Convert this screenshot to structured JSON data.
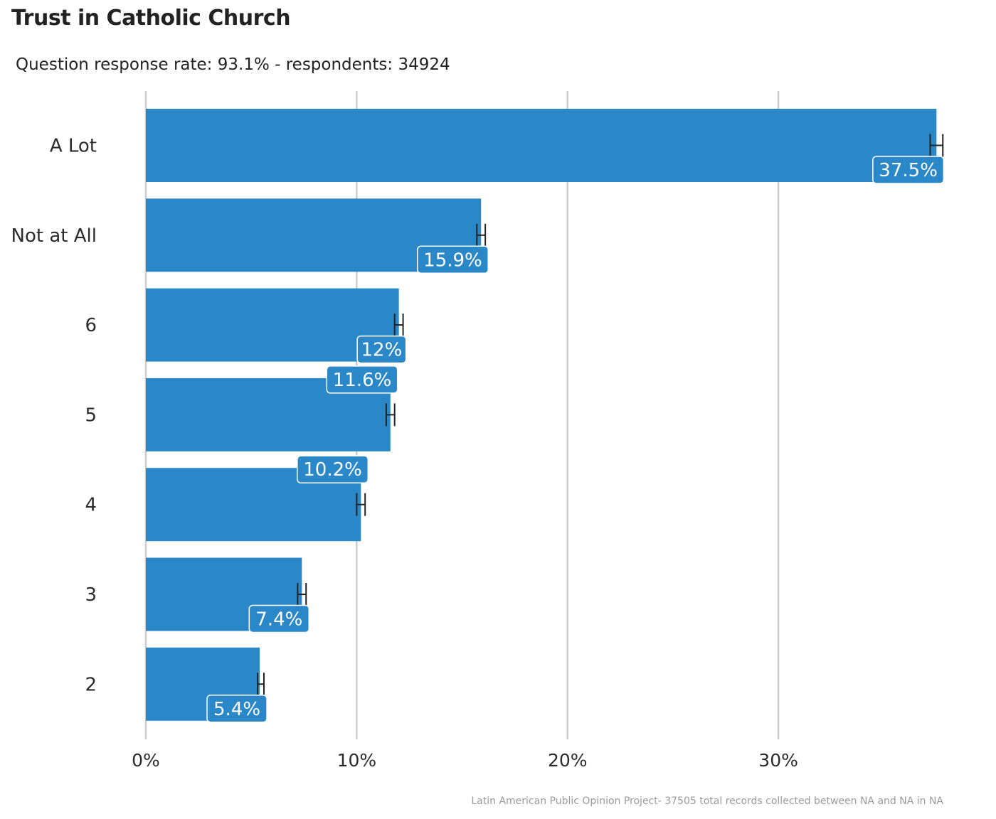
{
  "chart_data": {
    "type": "bar",
    "orientation": "horizontal",
    "title": "Trust in Catholic Church",
    "subtitle": "Question response rate: 93.1%  - respondents: 34924",
    "caption": "Latin American Public Opinion Project- 37505 total records collected between NA and NA in  NA",
    "categories": [
      "A Lot",
      "Not at All",
      "6",
      "5",
      "4",
      "3",
      "2"
    ],
    "values": [
      37.5,
      15.9,
      12.0,
      11.6,
      10.2,
      7.4,
      5.4
    ],
    "data_labels": [
      "37.5%",
      "15.9%",
      "12%",
      "11.6%",
      "10.2%",
      "7.4%",
      "5.4%"
    ],
    "error_bars": [
      {
        "low": 37.2,
        "high": 37.8
      },
      {
        "low": 15.7,
        "high": 16.1
      },
      {
        "low": 11.8,
        "high": 12.2
      },
      {
        "low": 11.4,
        "high": 11.8
      },
      {
        "low": 10.0,
        "high": 10.4
      },
      {
        "low": 7.2,
        "high": 7.6
      },
      {
        "low": 5.3,
        "high": 5.6
      }
    ],
    "xlim": [
      0,
      38.5
    ],
    "x_ticks": [
      0,
      10,
      20,
      30
    ],
    "x_tick_labels": [
      "0%",
      "10%",
      "20%",
      "30%"
    ],
    "xlabel": "",
    "ylabel": "",
    "grid": "vertical major",
    "bar_color": "#2b88c8",
    "errorbar_color": "#222222",
    "grid_color": "#cccccc"
  }
}
